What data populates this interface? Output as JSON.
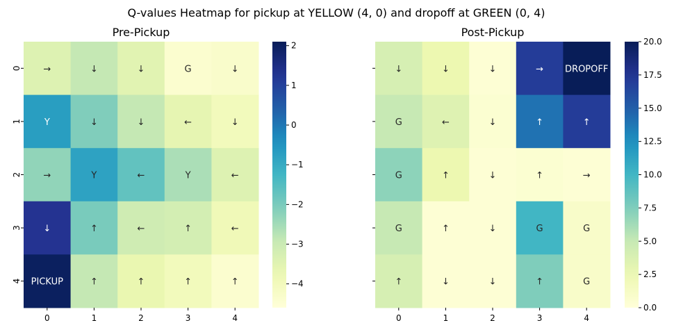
{
  "figure": {
    "title": "Q-values Heatmap for pickup at YELLOW (4, 0) and dropoff at GREEN (0, 4)"
  },
  "chart_data": [
    {
      "type": "heatmap",
      "title": "Pre-Pickup",
      "xlabel": "",
      "ylabel": "",
      "x_ticks": [
        "0",
        "1",
        "2",
        "3",
        "4"
      ],
      "y_ticks": [
        "0",
        "1",
        "2",
        "3",
        "4"
      ],
      "colormap": "YlGnBu",
      "vmin": -4.6,
      "vmax": 2.1,
      "colorbar_ticks": [
        2,
        1,
        0,
        -1,
        -2,
        -3,
        -4
      ],
      "colorbar_tick_labels": [
        "2",
        "1",
        "0",
        "−1",
        "−2",
        "−3",
        "−4"
      ],
      "values": [
        [
          -3.4,
          -2.9,
          -3.5,
          -4.4,
          -4.3
        ],
        [
          -0.7,
          -2.1,
          -2.9,
          -3.6,
          -4.0
        ],
        [
          -2.3,
          -0.8,
          -1.7,
          -2.6,
          -3.4
        ],
        [
          1.3,
          -2.0,
          -3.1,
          -3.2,
          -3.9
        ],
        [
          2.0,
          -2.9,
          -3.7,
          -4.0,
          -4.4
        ]
      ],
      "labels": [
        [
          "→",
          "↓",
          "↓",
          "G",
          "↓"
        ],
        [
          "Y",
          "↓",
          "↓",
          "←",
          "↓"
        ],
        [
          "→",
          "Y",
          "←",
          "Y",
          "←"
        ],
        [
          "↓",
          "↑",
          "←",
          "↑",
          "←"
        ],
        [
          "PICKUP",
          "↑",
          "↑",
          "↑",
          "↑"
        ]
      ]
    },
    {
      "type": "heatmap",
      "title": "Post-Pickup",
      "xlabel": "",
      "ylabel": "",
      "x_ticks": [
        "0",
        "1",
        "2",
        "3",
        "4"
      ],
      "y_ticks": [
        "0",
        "1",
        "2",
        "3",
        "4"
      ],
      "colormap": "YlGnBu",
      "vmin": 0,
      "vmax": 20,
      "colorbar_ticks": [
        20,
        17.5,
        15,
        12.5,
        10,
        7.5,
        5,
        2.5,
        0
      ],
      "colorbar_tick_labels": [
        "20.0",
        "17.5",
        "15.0",
        "12.5",
        "10.0",
        "7.5",
        "5.0",
        "2.5",
        "0.0"
      ],
      "values": [
        [
          4.0,
          2.5,
          0.3,
          17.0,
          20.0
        ],
        [
          5.0,
          3.5,
          0.5,
          14.0,
          17.0
        ],
        [
          7.0,
          2.5,
          0.3,
          0.5,
          0.3
        ],
        [
          5.0,
          0.3,
          0.3,
          10.0,
          1.0
        ],
        [
          4.0,
          0.3,
          0.3,
          7.5,
          1.0
        ]
      ],
      "labels": [
        [
          "↓",
          "↓",
          "↓",
          "→",
          "DROPOFF"
        ],
        [
          "G",
          "←",
          "↓",
          "↑",
          "↑"
        ],
        [
          "G",
          "↑",
          "↓",
          "↑",
          "→"
        ],
        [
          "G",
          "↑",
          "↓",
          "G",
          "G"
        ],
        [
          "↑",
          "↓",
          "↓",
          "↑",
          "G"
        ]
      ]
    }
  ]
}
